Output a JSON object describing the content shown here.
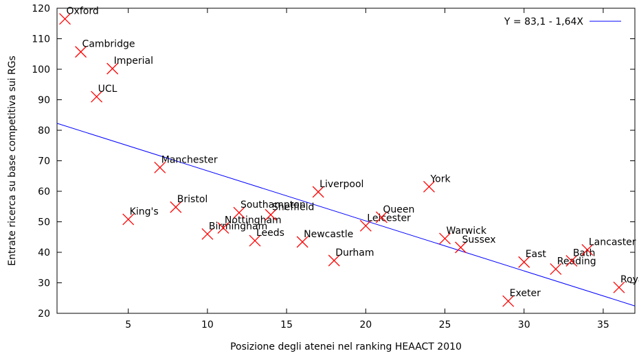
{
  "chart_data": {
    "type": "scatter",
    "xlabel": "Posizione degli atenei nel ranking HEAACT 2010",
    "ylabel": "Entrate ricerca su base competitiva sui RGs",
    "xlim": [
      0.5,
      37
    ],
    "ylim": [
      20,
      120
    ],
    "x_ticks": [
      5,
      10,
      15,
      20,
      25,
      30,
      35
    ],
    "y_ticks": [
      20,
      30,
      40,
      50,
      60,
      70,
      80,
      90,
      100,
      110,
      120
    ],
    "grid": false,
    "legend_position": "top-right",
    "colors": {
      "points": "#ff0000",
      "regression": "#0000ff",
      "axes": "#000000"
    },
    "points": [
      {
        "label": "Oxford",
        "x": 1,
        "y": 116.5
      },
      {
        "label": "Cambridge",
        "x": 2,
        "y": 105.7
      },
      {
        "label": "Imperial",
        "x": 4,
        "y": 100.2
      },
      {
        "label": "UCL",
        "x": 3,
        "y": 91
      },
      {
        "label": "King's",
        "x": 5,
        "y": 50.8
      },
      {
        "label": "Manchester",
        "x": 7,
        "y": 67.8
      },
      {
        "label": "Bristol",
        "x": 8,
        "y": 54.8
      },
      {
        "label": "Birmingham",
        "x": 10,
        "y": 46
      },
      {
        "label": "Nottingham",
        "x": 11,
        "y": 48
      },
      {
        "label": "Southampton",
        "x": 12,
        "y": 53
      },
      {
        "label": "Leeds",
        "x": 13,
        "y": 43.8
      },
      {
        "label": "Sheffield",
        "x": 14,
        "y": 52.3
      },
      {
        "label": "Newcastle",
        "x": 16,
        "y": 43.4
      },
      {
        "label": "Liverpool",
        "x": 17,
        "y": 59.8
      },
      {
        "label": "Durham",
        "x": 18,
        "y": 37.3
      },
      {
        "label": "Leicester",
        "x": 20,
        "y": 48.7
      },
      {
        "label": "Queen",
        "x": 21,
        "y": 51.5
      },
      {
        "label": "York",
        "x": 24,
        "y": 61.5
      },
      {
        "label": "Warwick",
        "x": 25,
        "y": 44.5
      },
      {
        "label": "Sussex",
        "x": 26,
        "y": 41.6
      },
      {
        "label": "Exeter",
        "x": 29,
        "y": 24
      },
      {
        "label": "East",
        "x": 30,
        "y": 36.8
      },
      {
        "label": "Reading",
        "x": 32,
        "y": 34.5
      },
      {
        "label": "Bath",
        "x": 33,
        "y": 37.2
      },
      {
        "label": "Lancaster",
        "x": 34,
        "y": 40.8
      },
      {
        "label": "Royal",
        "x": 36,
        "y": 28.5
      }
    ],
    "regression": {
      "label": "Y = 83,1 - 1,64X",
      "intercept": 83.1,
      "slope": -1.64
    }
  }
}
